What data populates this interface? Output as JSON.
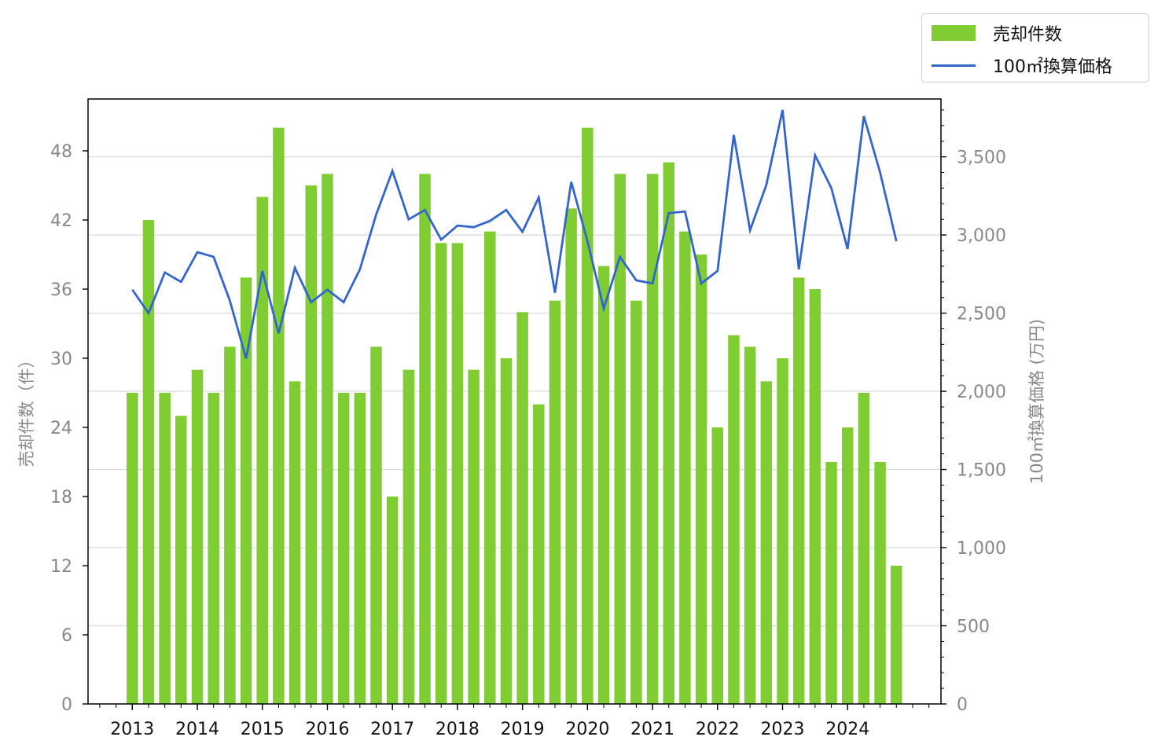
{
  "chart_data": {
    "type": "bar",
    "title": "",
    "xlabel": "",
    "ylabel": "売却件数（件）",
    "y2label": "100㎡換算価格 (万円)",
    "ylim": [
      0,
      52.5
    ],
    "y2lim": [
      0,
      3870
    ],
    "yticks": [
      0,
      6,
      12,
      18,
      24,
      30,
      36,
      42,
      48
    ],
    "y2ticks": [
      0,
      500,
      1000,
      1500,
      2000,
      2500,
      3000,
      3500
    ],
    "y2tick_labels": [
      "0",
      "500",
      "1,000",
      "1,500",
      "2,000",
      "2,500",
      "3,000",
      "3,500"
    ],
    "xtick_labels": [
      "2013",
      "2014",
      "2015",
      "2016",
      "2017",
      "2018",
      "2019",
      "2020",
      "2021",
      "2022",
      "2023",
      "2024"
    ],
    "grid": true,
    "legend_position": "top-right-outside",
    "colors": {
      "bar": "#7fcc33",
      "line": "#3366cc",
      "tick_text": "#888888",
      "xtick_text": "#111111",
      "grid": "#d9d9d9"
    },
    "series": [
      {
        "name": "売却件数",
        "type": "bar",
        "axis": "left",
        "values": [
          27,
          42,
          27,
          25,
          29,
          27,
          31,
          37,
          44,
          50,
          28,
          45,
          46,
          27,
          27,
          31,
          18,
          29,
          46,
          40,
          40,
          29,
          41,
          30,
          34,
          26,
          35,
          43,
          50,
          38,
          46,
          35,
          46,
          47,
          41,
          39,
          24,
          32,
          31,
          28,
          30,
          37,
          36,
          21,
          24,
          27,
          21,
          12
        ]
      },
      {
        "name": "100㎡換算価格",
        "type": "line",
        "axis": "right",
        "values": [
          2650,
          2500,
          2760,
          2700,
          2890,
          2860,
          2580,
          2210,
          2770,
          2370,
          2790,
          2570,
          2650,
          2570,
          2780,
          3130,
          3410,
          3100,
          3160,
          2970,
          3060,
          3050,
          3090,
          3160,
          3020,
          3240,
          2630,
          3340,
          2960,
          2530,
          2860,
          2710,
          2690,
          3140,
          3150,
          2690,
          2770,
          3640,
          3030,
          3320,
          3800,
          2780,
          3510,
          3300,
          2910,
          3760,
          3400,
          2960
        ]
      }
    ]
  }
}
